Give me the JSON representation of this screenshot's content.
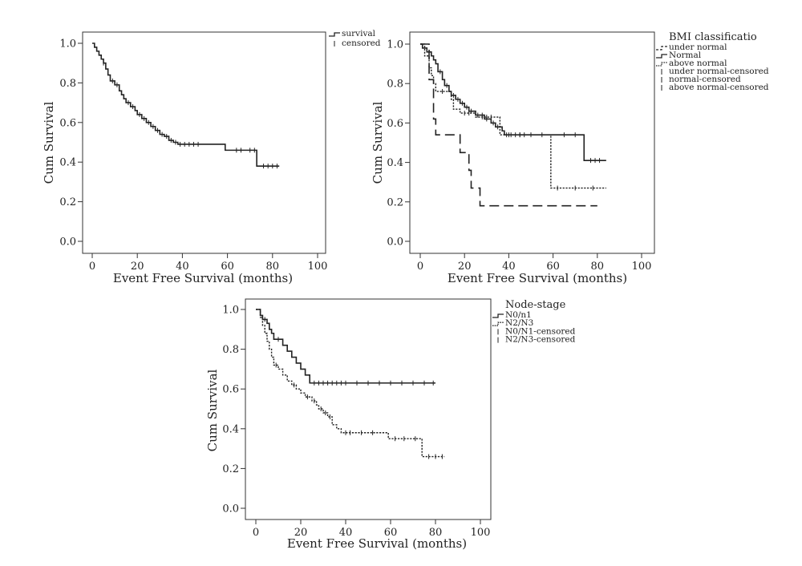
{
  "chart_data": [
    {
      "type": "line",
      "subtype": "kaplan-meier",
      "title": "",
      "xlabel": "Event Free Survival (months)",
      "ylabel": "Cum Survival",
      "xlim": [
        0,
        100
      ],
      "ylim": [
        0.0,
        1.0
      ],
      "xticks": [
        "0",
        "20",
        "40",
        "60",
        "80",
        "100"
      ],
      "yticks": [
        "0.0",
        "0.2",
        "0.4",
        "0.6",
        "0.8",
        "1.0"
      ],
      "legend_title": "",
      "legend_position": "top-right-outside",
      "legend": [
        {
          "label": "survival",
          "kind": "line",
          "style": "solid"
        },
        {
          "label": "censored",
          "kind": "tick",
          "style": "solid"
        }
      ],
      "series": [
        {
          "style": "solid",
          "steps": [
            [
              0,
              1.0
            ],
            [
              1,
              0.98
            ],
            [
              2,
              0.96
            ],
            [
              3,
              0.94
            ],
            [
              4,
              0.92
            ],
            [
              5,
              0.9
            ],
            [
              6,
              0.87
            ],
            [
              7,
              0.84
            ],
            [
              8,
              0.81
            ],
            [
              10,
              0.79
            ],
            [
              12,
              0.76
            ],
            [
              13,
              0.74
            ],
            [
              14,
              0.72
            ],
            [
              15,
              0.7
            ],
            [
              17,
              0.68
            ],
            [
              19,
              0.66
            ],
            [
              20,
              0.64
            ],
            [
              22,
              0.62
            ],
            [
              24,
              0.6
            ],
            [
              26,
              0.58
            ],
            [
              28,
              0.56
            ],
            [
              30,
              0.54
            ],
            [
              32,
              0.53
            ],
            [
              34,
              0.51
            ],
            [
              36,
              0.5
            ],
            [
              38,
              0.49
            ],
            [
              59,
              0.46
            ],
            [
              73,
              0.38
            ],
            [
              83,
              0.38
            ]
          ],
          "censored": [
            [
              5,
              0.9
            ],
            [
              9,
              0.81
            ],
            [
              11,
              0.79
            ],
            [
              16,
              0.7
            ],
            [
              18,
              0.68
            ],
            [
              21,
              0.64
            ],
            [
              23,
              0.62
            ],
            [
              25,
              0.6
            ],
            [
              27,
              0.58
            ],
            [
              29,
              0.56
            ],
            [
              31,
              0.54
            ],
            [
              33,
              0.53
            ],
            [
              35,
              0.51
            ],
            [
              37,
              0.5
            ],
            [
              39,
              0.49
            ],
            [
              41,
              0.49
            ],
            [
              43,
              0.49
            ],
            [
              45,
              0.49
            ],
            [
              47,
              0.49
            ],
            [
              64,
              0.46
            ],
            [
              66,
              0.46
            ],
            [
              70,
              0.46
            ],
            [
              72,
              0.46
            ],
            [
              76,
              0.38
            ],
            [
              78,
              0.38
            ],
            [
              80,
              0.38
            ],
            [
              82,
              0.38
            ]
          ]
        }
      ]
    },
    {
      "type": "line",
      "subtype": "kaplan-meier",
      "title": "",
      "xlabel": "Event Free Survival (months)",
      "ylabel": "Cum Survival",
      "xlim": [
        0,
        100
      ],
      "ylim": [
        0.0,
        1.0
      ],
      "xticks": [
        "0",
        "20",
        "40",
        "60",
        "80",
        "100"
      ],
      "yticks": [
        "0.0",
        "0.2",
        "0.4",
        "0.6",
        "0.8",
        "1.0"
      ],
      "legend_title": "BMI classificatio",
      "legend_position": "top-right-outside",
      "legend": [
        {
          "label": "under normal",
          "kind": "line",
          "style": "dashed"
        },
        {
          "label": "Normal",
          "kind": "line",
          "style": "solid"
        },
        {
          "label": "above normal",
          "kind": "line",
          "style": "dotted"
        },
        {
          "label": "under normal-censored",
          "kind": "tick",
          "style": "dashed"
        },
        {
          "label": "normal-censored",
          "kind": "tick",
          "style": "solid"
        },
        {
          "label": "above normal-censored",
          "kind": "tick",
          "style": "dotted"
        }
      ],
      "series": [
        {
          "name": "under normal",
          "style": "dashed",
          "steps": [
            [
              0,
              1.0
            ],
            [
              4,
              0.82
            ],
            [
              6,
              0.62
            ],
            [
              7,
              0.54
            ],
            [
              18,
              0.45
            ],
            [
              22,
              0.36
            ],
            [
              23,
              0.27
            ],
            [
              27,
              0.18
            ],
            [
              80,
              0.18
            ]
          ],
          "censored": []
        },
        {
          "name": "Normal",
          "style": "solid",
          "steps": [
            [
              0,
              1.0
            ],
            [
              1,
              0.98
            ],
            [
              3,
              0.96
            ],
            [
              5,
              0.94
            ],
            [
              6,
              0.92
            ],
            [
              7,
              0.9
            ],
            [
              8,
              0.86
            ],
            [
              10,
              0.82
            ],
            [
              11,
              0.79
            ],
            [
              13,
              0.76
            ],
            [
              14,
              0.74
            ],
            [
              16,
              0.72
            ],
            [
              18,
              0.7
            ],
            [
              20,
              0.68
            ],
            [
              22,
              0.66
            ],
            [
              25,
              0.64
            ],
            [
              29,
              0.62
            ],
            [
              32,
              0.6
            ],
            [
              34,
              0.58
            ],
            [
              37,
              0.56
            ],
            [
              38,
              0.54
            ],
            [
              74,
              0.41
            ],
            [
              84,
              0.41
            ]
          ],
          "censored": [
            [
              9,
              0.86
            ],
            [
              12,
              0.79
            ],
            [
              15,
              0.74
            ],
            [
              17,
              0.72
            ],
            [
              19,
              0.7
            ],
            [
              21,
              0.68
            ],
            [
              23,
              0.66
            ],
            [
              26,
              0.64
            ],
            [
              28,
              0.64
            ],
            [
              30,
              0.62
            ],
            [
              33,
              0.6
            ],
            [
              35,
              0.58
            ],
            [
              39,
              0.54
            ],
            [
              41,
              0.54
            ],
            [
              43,
              0.54
            ],
            [
              45,
              0.54
            ],
            [
              47,
              0.54
            ],
            [
              55,
              0.54
            ],
            [
              65,
              0.54
            ],
            [
              70,
              0.54
            ],
            [
              77,
              0.41
            ],
            [
              79,
              0.41
            ],
            [
              81,
              0.41
            ]
          ]
        },
        {
          "name": "above normal",
          "style": "dotted",
          "steps": [
            [
              0,
              1.0
            ],
            [
              2,
              0.94
            ],
            [
              4,
              0.88
            ],
            [
              5,
              0.84
            ],
            [
              6,
              0.8
            ],
            [
              7,
              0.76
            ],
            [
              14,
              0.72
            ],
            [
              15,
              0.67
            ],
            [
              18,
              0.65
            ],
            [
              25,
              0.63
            ],
            [
              36,
              0.54
            ],
            [
              59,
              0.27
            ],
            [
              84,
              0.27
            ]
          ],
          "censored": [
            [
              10,
              0.76
            ],
            [
              20,
              0.65
            ],
            [
              22,
              0.65
            ],
            [
              28,
              0.63
            ],
            [
              30,
              0.63
            ],
            [
              32,
              0.63
            ],
            [
              40,
              0.54
            ],
            [
              45,
              0.54
            ],
            [
              50,
              0.54
            ],
            [
              62,
              0.27
            ],
            [
              70,
              0.27
            ],
            [
              78,
              0.27
            ]
          ]
        }
      ]
    },
    {
      "type": "line",
      "subtype": "kaplan-meier",
      "title": "",
      "xlabel": "Event Free Survival (months)",
      "ylabel": "Cum Survival",
      "xlim": [
        0,
        100
      ],
      "ylim": [
        0.0,
        1.0
      ],
      "xticks": [
        "0",
        "20",
        "40",
        "60",
        "80",
        "100"
      ],
      "yticks": [
        "0.0",
        "0.2",
        "0.4",
        "0.6",
        "0.8",
        "1.0"
      ],
      "legend_title": "Node-stage",
      "legend_position": "top-right-outside",
      "legend": [
        {
          "label": "N0/n1",
          "kind": "line",
          "style": "solid"
        },
        {
          "label": "N2/N3",
          "kind": "line",
          "style": "dotted"
        },
        {
          "label": "N0/N1-censored",
          "kind": "tick",
          "style": "solid"
        },
        {
          "label": "N2/N3-censored",
          "kind": "tick",
          "style": "dotted"
        }
      ],
      "series": [
        {
          "name": "N0/n1",
          "style": "solid",
          "steps": [
            [
              0,
              1.0
            ],
            [
              2,
              0.97
            ],
            [
              3,
              0.95
            ],
            [
              5,
              0.93
            ],
            [
              6,
              0.9
            ],
            [
              7,
              0.88
            ],
            [
              8,
              0.85
            ],
            [
              12,
              0.82
            ],
            [
              14,
              0.79
            ],
            [
              16,
              0.76
            ],
            [
              18,
              0.73
            ],
            [
              20,
              0.7
            ],
            [
              22,
              0.67
            ],
            [
              24,
              0.63
            ],
            [
              80,
              0.63
            ]
          ],
          "censored": [
            [
              4,
              0.95
            ],
            [
              10,
              0.85
            ],
            [
              26,
              0.63
            ],
            [
              28,
              0.63
            ],
            [
              30,
              0.63
            ],
            [
              32,
              0.63
            ],
            [
              34,
              0.63
            ],
            [
              36,
              0.63
            ],
            [
              38,
              0.63
            ],
            [
              40,
              0.63
            ],
            [
              45,
              0.63
            ],
            [
              50,
              0.63
            ],
            [
              55,
              0.63
            ],
            [
              60,
              0.63
            ],
            [
              65,
              0.63
            ],
            [
              70,
              0.63
            ],
            [
              75,
              0.63
            ],
            [
              79,
              0.63
            ]
          ]
        },
        {
          "name": "N2/N3",
          "style": "dotted",
          "steps": [
            [
              0,
              1.0
            ],
            [
              2,
              0.96
            ],
            [
              3,
              0.92
            ],
            [
              4,
              0.88
            ],
            [
              5,
              0.84
            ],
            [
              6,
              0.8
            ],
            [
              7,
              0.76
            ],
            [
              8,
              0.72
            ],
            [
              10,
              0.7
            ],
            [
              12,
              0.67
            ],
            [
              14,
              0.64
            ],
            [
              16,
              0.62
            ],
            [
              18,
              0.6
            ],
            [
              20,
              0.58
            ],
            [
              22,
              0.56
            ],
            [
              25,
              0.54
            ],
            [
              27,
              0.52
            ],
            [
              28,
              0.5
            ],
            [
              30,
              0.48
            ],
            [
              32,
              0.46
            ],
            [
              34,
              0.42
            ],
            [
              36,
              0.4
            ],
            [
              38,
              0.38
            ],
            [
              59,
              0.35
            ],
            [
              74,
              0.26
            ],
            [
              84,
              0.26
            ]
          ],
          "censored": [
            [
              9,
              0.72
            ],
            [
              17,
              0.62
            ],
            [
              23,
              0.56
            ],
            [
              26,
              0.54
            ],
            [
              29,
              0.5
            ],
            [
              31,
              0.48
            ],
            [
              33,
              0.46
            ],
            [
              40,
              0.38
            ],
            [
              42,
              0.38
            ],
            [
              47,
              0.38
            ],
            [
              52,
              0.38
            ],
            [
              62,
              0.35
            ],
            [
              66,
              0.35
            ],
            [
              71,
              0.35
            ],
            [
              77,
              0.26
            ],
            [
              80,
              0.26
            ],
            [
              83,
              0.26
            ]
          ]
        }
      ]
    }
  ]
}
